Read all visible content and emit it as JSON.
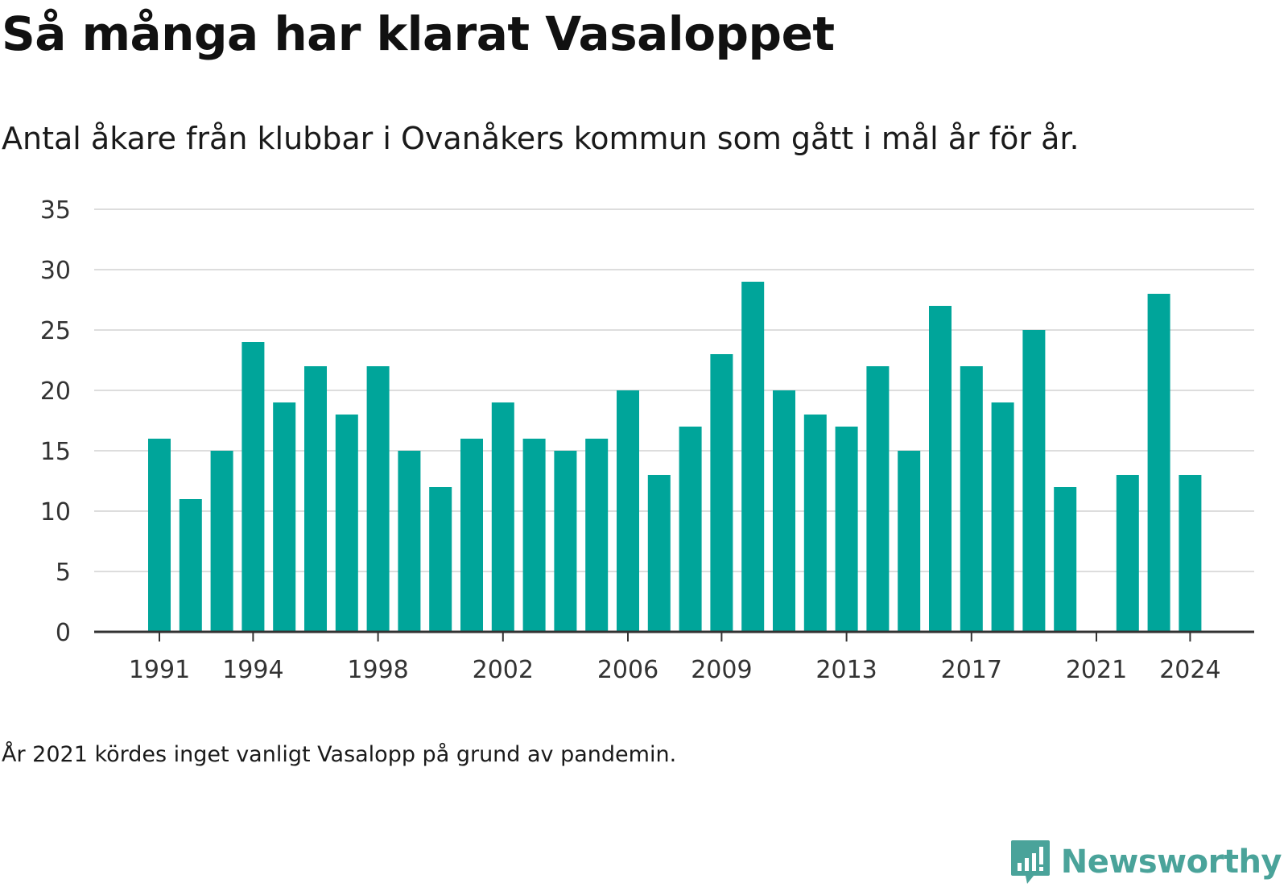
{
  "header": {
    "title": "Så många har klarat Vasaloppet",
    "subtitle": "Antal åkare från klubbar i Ovanåkers kommun som gått i mål år för år."
  },
  "footer": {
    "note": "År 2021 kördes inget vanligt Vasalopp på grund av pandemin.",
    "brand": "Newsworthy",
    "brand_icon": "newsworthy-logo-icon"
  },
  "colors": {
    "bar": "#00a59a",
    "grid": "#dddddd",
    "axis": "#333333",
    "brand": "#4aa39a"
  },
  "chart_data": {
    "type": "bar",
    "title": "Så många har klarat Vasaloppet",
    "subtitle": "Antal åkare från klubbar i Ovanåkers kommun som gått i mål år för år.",
    "xlabel": "",
    "ylabel": "",
    "categories": [
      "1991",
      "1992",
      "1993",
      "1994",
      "1995",
      "1996",
      "1997",
      "1998",
      "1999",
      "2000",
      "2001",
      "2002",
      "2003",
      "2004",
      "2005",
      "2006",
      "2007",
      "2008",
      "2009",
      "2010",
      "2011",
      "2012",
      "2013",
      "2014",
      "2015",
      "2016",
      "2017",
      "2018",
      "2019",
      "2020",
      "2021",
      "2022",
      "2023",
      "2024"
    ],
    "values": [
      16,
      11,
      15,
      24,
      19,
      22,
      18,
      22,
      15,
      12,
      16,
      19,
      16,
      15,
      16,
      20,
      13,
      17,
      23,
      29,
      20,
      18,
      17,
      22,
      15,
      27,
      22,
      19,
      25,
      12,
      null,
      13,
      28,
      13
    ],
    "x_tick_labels": [
      "1991",
      "1994",
      "1998",
      "2002",
      "2006",
      "2009",
      "2013",
      "2017",
      "2021",
      "2024"
    ],
    "y_ticks": [
      0,
      5,
      10,
      15,
      20,
      25,
      30,
      35
    ],
    "ylim": [
      0,
      35
    ],
    "grid": true,
    "legend": "none"
  }
}
